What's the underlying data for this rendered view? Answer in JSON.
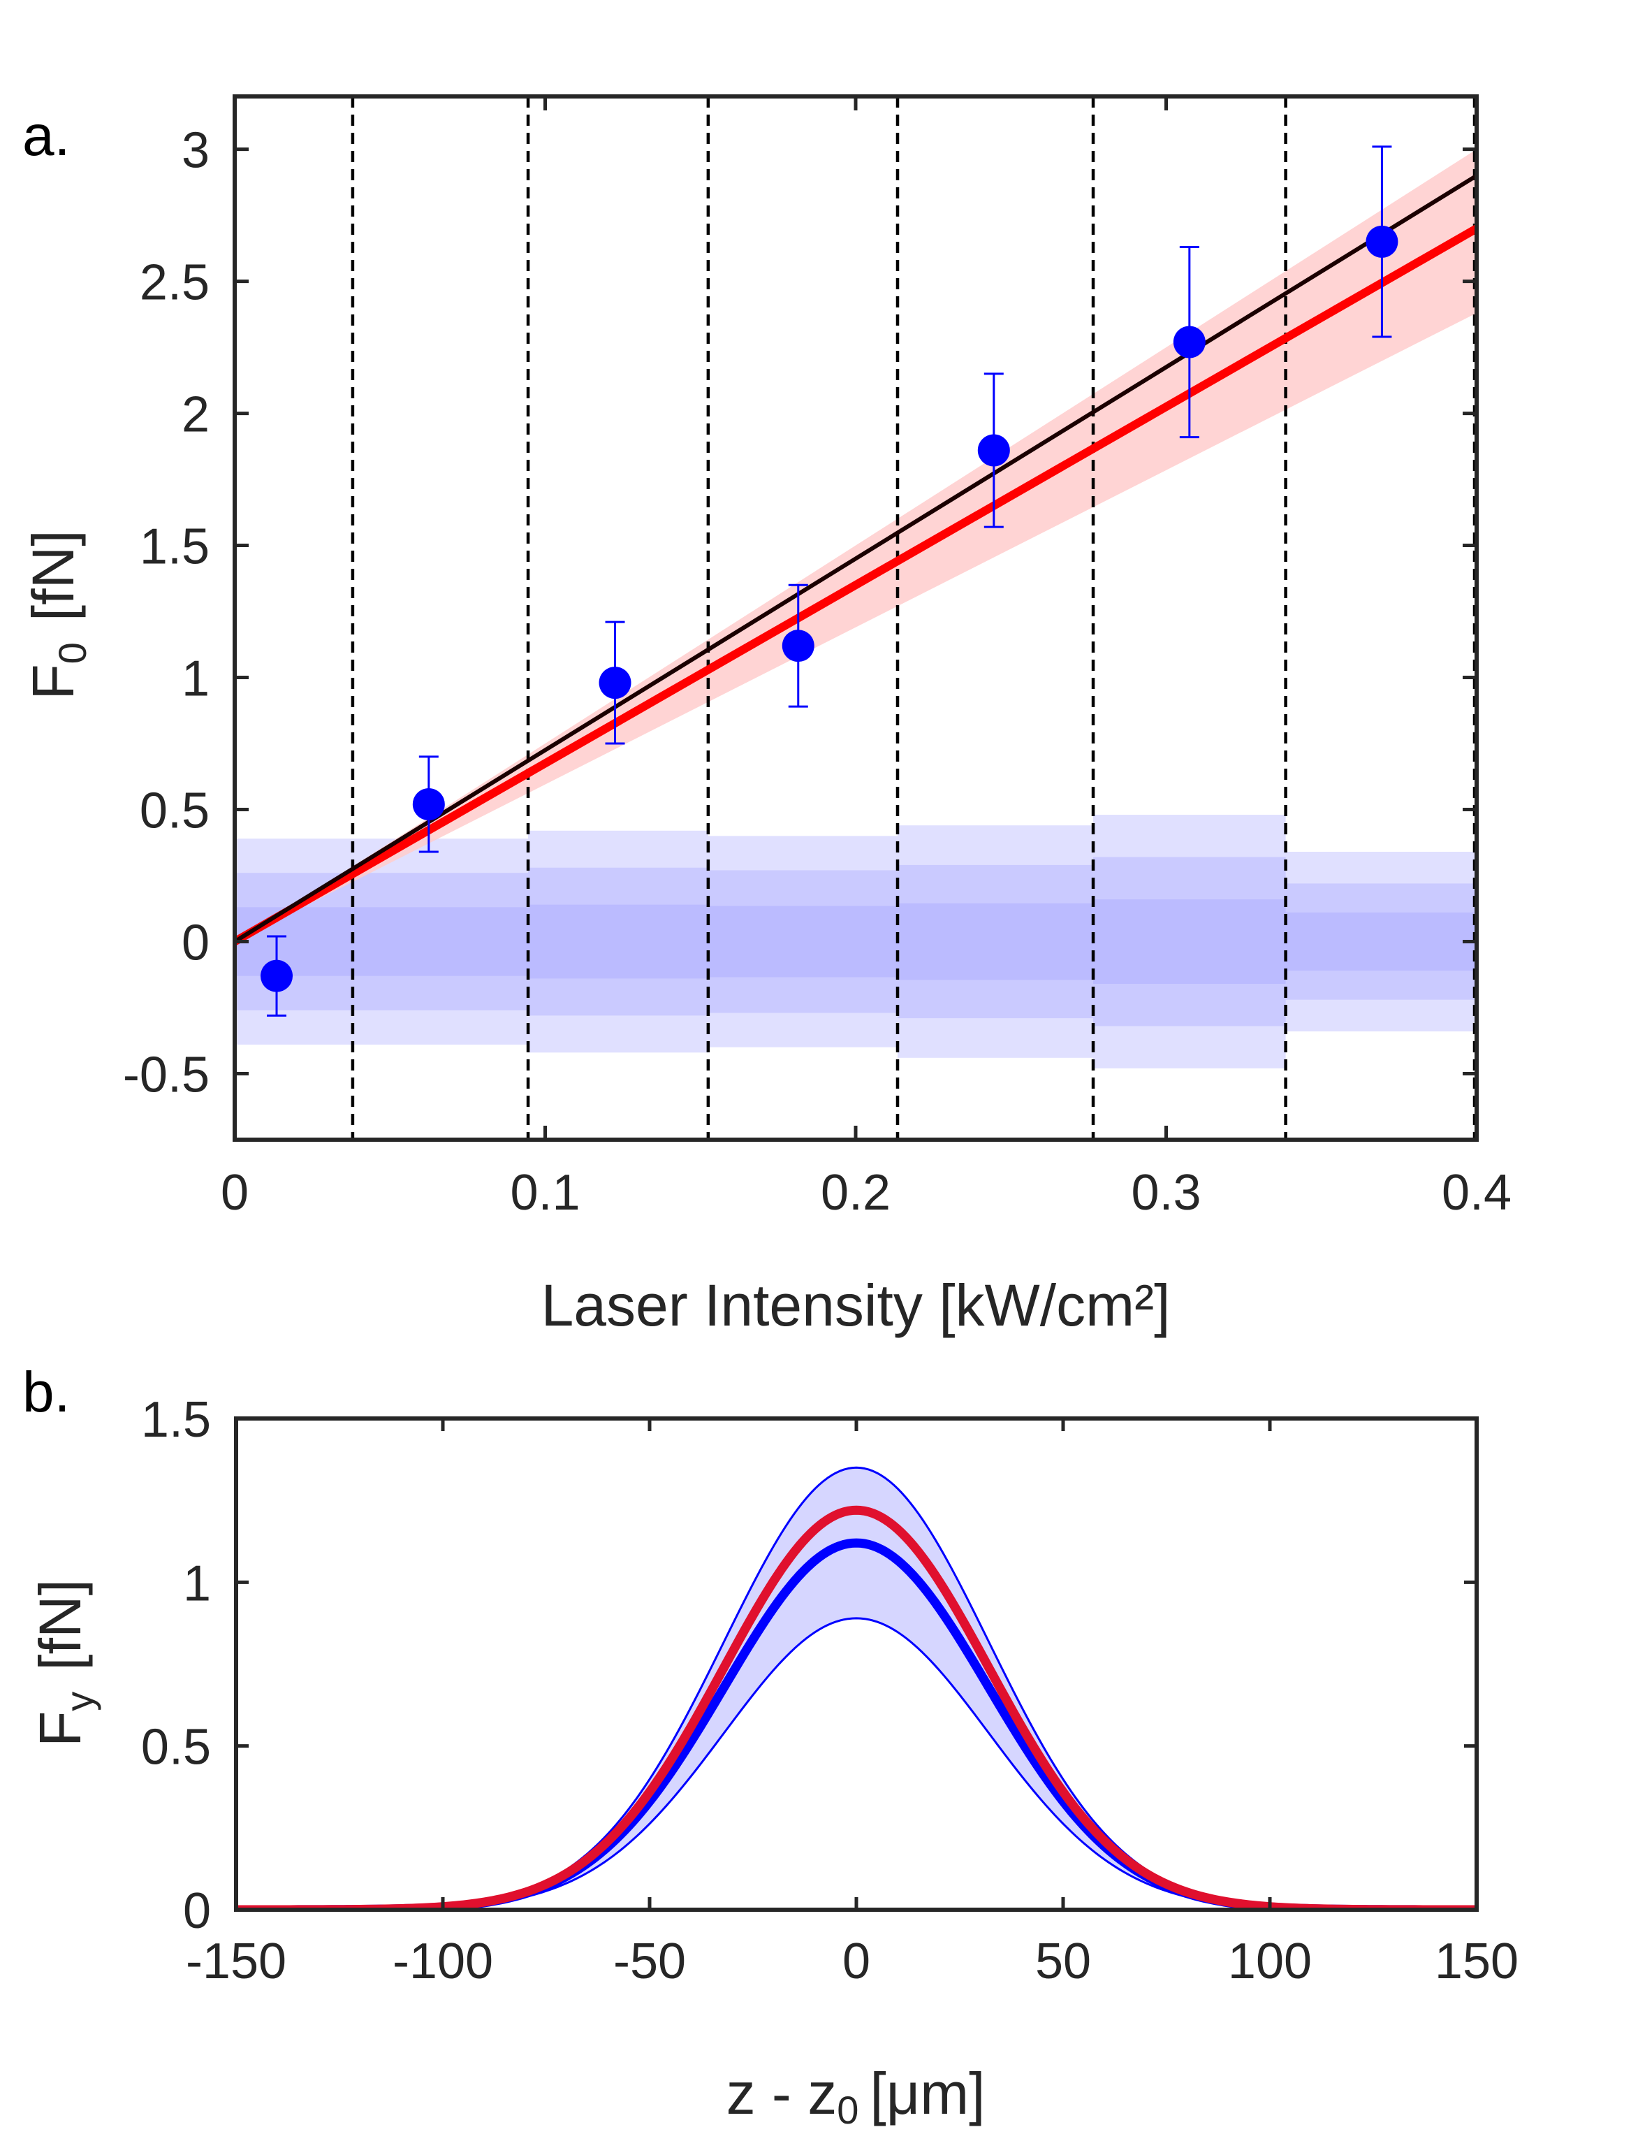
{
  "chart_data": [
    {
      "panel": "a.",
      "type": "scatter",
      "xlabel": "Laser Intensity [kW/cm²]",
      "ylabel_main": "F",
      "ylabel_sub": "0",
      "ylabel_unit": "[fN]",
      "xlim": [
        0,
        0.4
      ],
      "ylim": [
        -0.75,
        3.2
      ],
      "xticks": [
        0,
        0.1,
        0.2,
        0.3,
        0.4
      ],
      "xtick_labels": [
        "0",
        "0.1",
        "0.2",
        "0.3",
        "0.4"
      ],
      "yticks": [
        -0.5,
        0,
        0.5,
        1,
        1.5,
        2,
        2.5,
        3
      ],
      "ytick_labels": [
        "-0.5",
        "0",
        "0.5",
        "1",
        "1.5",
        "2",
        "2.5",
        "3"
      ],
      "bin_edges": [
        0.038,
        0.0945,
        0.1525,
        0.2135,
        0.2765,
        0.3385
      ],
      "points": [
        {
          "x": 0.0135,
          "y": -0.13,
          "err": 0.15
        },
        {
          "x": 0.0625,
          "y": 0.52,
          "err": 0.18
        },
        {
          "x": 0.1225,
          "y": 0.98,
          "err": 0.23
        },
        {
          "x": 0.1815,
          "y": 1.12,
          "err": 0.23
        },
        {
          "x": 0.2445,
          "y": 1.86,
          "err": 0.29
        },
        {
          "x": 0.3075,
          "y": 2.27,
          "err": 0.36
        },
        {
          "x": 0.3695,
          "y": 2.65,
          "err": 0.36
        }
      ],
      "lines": [
        {
          "name": "theory",
          "x": [
            0,
            0.4
          ],
          "y": [
            0,
            2.9
          ],
          "color": "#1a0000"
        },
        {
          "name": "fit",
          "x": [
            0,
            0.4
          ],
          "y": [
            0,
            2.7
          ],
          "color": "#ff0000"
        }
      ],
      "fit_band": {
        "x": [
          0,
          0.4
        ],
        "lower": [
          0,
          2.38
        ],
        "upper": [
          0,
          3.0
        ],
        "color": "#ffcccc"
      },
      "noise_bands": [
        {
          "x0": 0.0,
          "x1": 0.038,
          "s1": 0.13,
          "s2": 0.26,
          "s3": 0.39
        },
        {
          "x0": 0.038,
          "x1": 0.0945,
          "s1": 0.13,
          "s2": 0.26,
          "s3": 0.39
        },
        {
          "x0": 0.0945,
          "x1": 0.1525,
          "s1": 0.14,
          "s2": 0.28,
          "s3": 0.42
        },
        {
          "x0": 0.1525,
          "x1": 0.2135,
          "s1": 0.135,
          "s2": 0.27,
          "s3": 0.4
        },
        {
          "x0": 0.2135,
          "x1": 0.2765,
          "s1": 0.145,
          "s2": 0.29,
          "s3": 0.44
        },
        {
          "x0": 0.2765,
          "x1": 0.3385,
          "s1": 0.16,
          "s2": 0.32,
          "s3": 0.48
        },
        {
          "x0": 0.3385,
          "x1": 0.4,
          "s1": 0.11,
          "s2": 0.22,
          "s3": 0.34
        }
      ],
      "colors": {
        "points": "#0000ff",
        "noise_band": "#9999ff",
        "axis": "#262626"
      }
    },
    {
      "panel": "b.",
      "type": "line",
      "xlabel": "z - z",
      "xlabel_sub": "0",
      "xlabel_unit": "[μm]",
      "ylabel_main": "F",
      "ylabel_sub": "y",
      "ylabel_unit": "[fN]",
      "xlim": [
        -150,
        150
      ],
      "ylim": [
        0,
        1.5
      ],
      "xticks": [
        -150,
        -100,
        -50,
        0,
        50,
        100,
        150
      ],
      "xtick_labels": [
        "-150",
        "-100",
        "-50",
        "0",
        "50",
        "100",
        "150"
      ],
      "yticks": [
        0,
        0.5,
        1,
        1.5
      ],
      "ytick_labels": [
        "0",
        "0.5",
        "1",
        "1.5"
      ],
      "gaussian_sigma": 32,
      "series": [
        {
          "name": "upper bound",
          "amplitude": 1.35,
          "color": "#0000ff",
          "width": "thin"
        },
        {
          "name": "lower bound",
          "amplitude": 0.89,
          "color": "#0000ff",
          "width": "thin"
        },
        {
          "name": "measured",
          "amplitude": 1.12,
          "color": "#0000ff",
          "width": "thick"
        },
        {
          "name": "theory",
          "amplitude": 1.22,
          "color": "#e0102e",
          "width": "thick"
        }
      ],
      "band_color": "#d6d6ff"
    }
  ]
}
